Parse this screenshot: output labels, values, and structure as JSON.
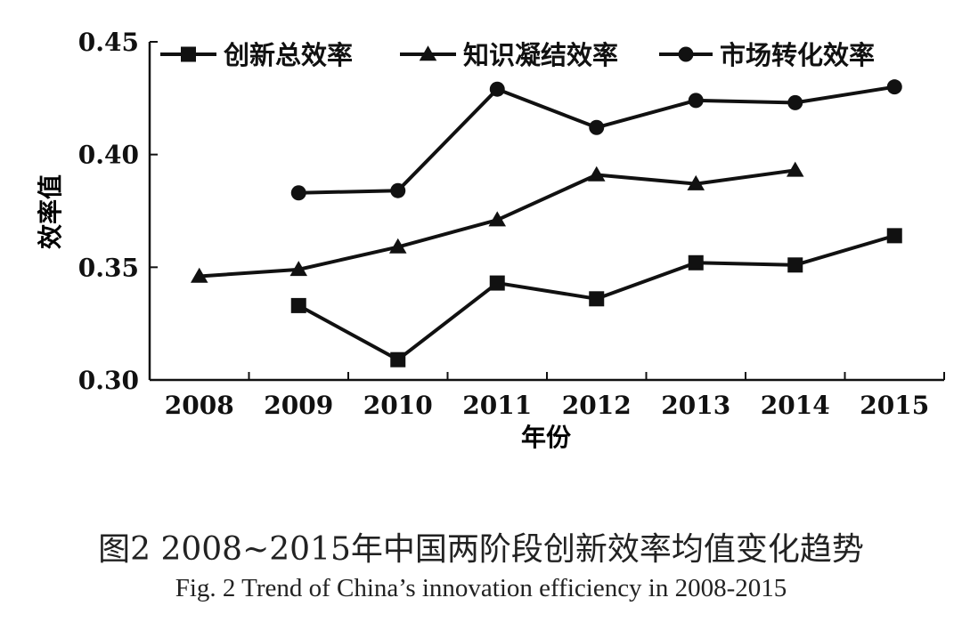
{
  "chart_data": {
    "type": "line",
    "title": "",
    "xlabel": "年份",
    "ylabel": "效率值",
    "categories": [
      "2008",
      "2009",
      "2010",
      "2011",
      "2012",
      "2013",
      "2014",
      "2015"
    ],
    "ylim": [
      0.3,
      0.45
    ],
    "yticks": [
      "0.30",
      "0.35",
      "0.40",
      "0.45"
    ],
    "yticks_values": [
      0.3,
      0.35,
      0.4,
      0.45
    ],
    "grid": false,
    "legend_position": "top",
    "series": [
      {
        "name": "创新总效率",
        "marker": "square",
        "values": [
          null,
          0.333,
          0.309,
          0.343,
          0.336,
          0.352,
          0.351,
          0.364
        ]
      },
      {
        "name": "知识凝结效率",
        "marker": "triangle",
        "values": [
          0.346,
          0.349,
          0.359,
          0.371,
          0.391,
          0.387,
          0.393,
          null
        ]
      },
      {
        "name": "市场转化效率",
        "marker": "circle",
        "values": [
          null,
          0.383,
          0.384,
          0.429,
          0.412,
          0.424,
          0.423,
          0.43
        ]
      }
    ]
  },
  "caption": {
    "chinese": "图2   2008~2015年中国两阶段创新效率均值变化趋势",
    "english": "Fig. 2    Trend of China’s innovation efficiency in 2008-2015"
  },
  "colors": {
    "line": "#111111",
    "axis": "#111111",
    "caption": "#222222"
  }
}
